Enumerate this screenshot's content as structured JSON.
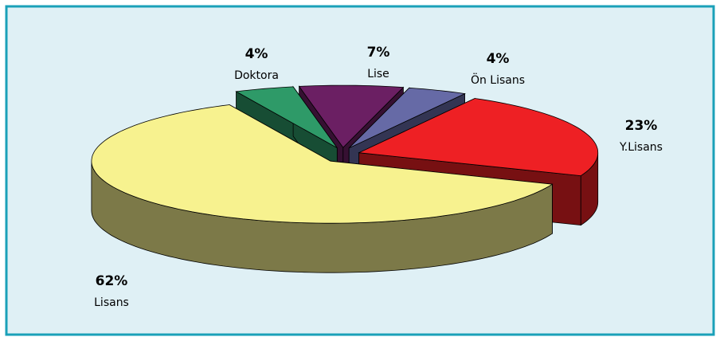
{
  "chart_data": {
    "type": "pie3d",
    "categories": [
      "Doktora",
      "Lise",
      "Ön Lisans",
      "Y.Lisans",
      "Lisans"
    ],
    "values": [
      4,
      7,
      4,
      23,
      62
    ],
    "value_labels": [
      "4%",
      "7%",
      "4%",
      "23%",
      "62%"
    ],
    "colors": [
      "#2e9a68",
      "#6b1f63",
      "#666aa6",
      "#ee2024",
      "#f7f28f"
    ]
  }
}
